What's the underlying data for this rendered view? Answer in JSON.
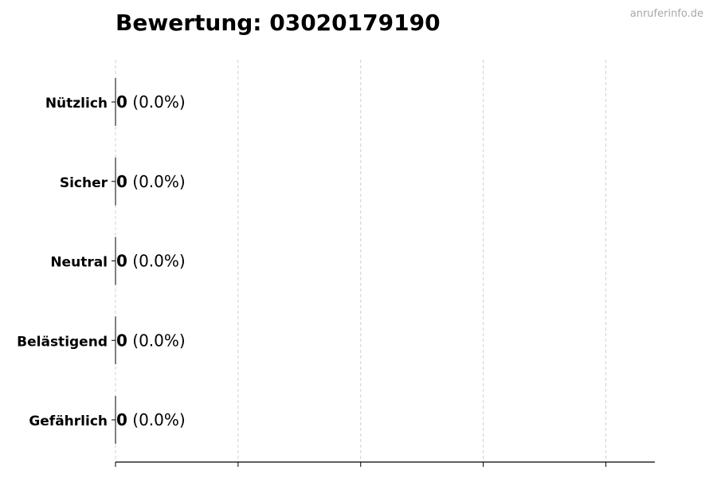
{
  "chart_data": {
    "type": "bar",
    "orientation": "horizontal",
    "title": "Bewertung: 03020179190",
    "watermark": "anruferinfo.de",
    "categories": [
      "Nützlich",
      "Sicher",
      "Neutral",
      "Belästigend",
      "Gefährlich"
    ],
    "values": [
      0,
      0,
      0,
      0,
      0
    ],
    "data_labels": [
      {
        "count": "0",
        "percent": "(0.0%)"
      },
      {
        "count": "0",
        "percent": "(0.0%)"
      },
      {
        "count": "0",
        "percent": "(0.0%)"
      },
      {
        "count": "0",
        "percent": "(0.0%)"
      },
      {
        "count": "0",
        "percent": "(0.0%)"
      }
    ],
    "xlabel": "",
    "ylabel": "",
    "xlim": [
      0,
      4.4
    ],
    "x_tick_values": [
      0,
      1,
      2,
      3,
      4
    ],
    "x_tick_labels_shown": false,
    "grid": "x, dashed",
    "colors": {
      "bar": "#000000",
      "grid": "#d0d0d0",
      "watermark": "#a8a8a8"
    }
  }
}
